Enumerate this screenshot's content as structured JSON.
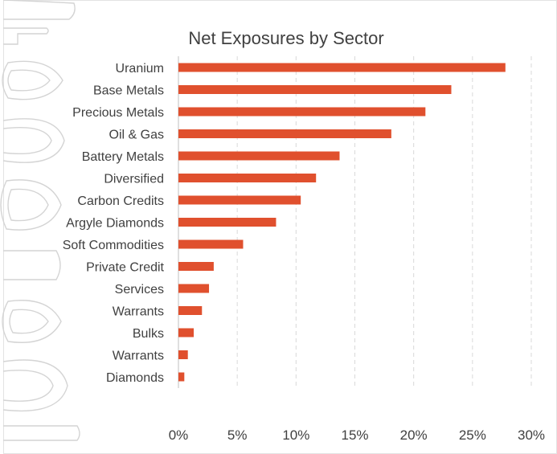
{
  "chart_data": {
    "type": "bar",
    "orientation": "horizontal",
    "title": "Net Exposures by Sector",
    "categories": [
      "Uranium",
      "Base Metals",
      "Precious Metals",
      "Oil & Gas",
      "Battery Metals",
      "Diversified",
      "Carbon Credits",
      "Argyle Diamonds",
      "Soft Commodities",
      "Private Credit",
      "Services",
      "Warrants",
      "Bulks",
      "Warrants",
      "Diamonds"
    ],
    "values": [
      0.278,
      0.232,
      0.21,
      0.181,
      0.137,
      0.117,
      0.104,
      0.083,
      0.055,
      0.03,
      0.026,
      0.02,
      0.013,
      0.008,
      0.005
    ],
    "xlim": [
      0,
      0.3
    ],
    "x_ticks": [
      0,
      0.05,
      0.1,
      0.15,
      0.2,
      0.25,
      0.3
    ],
    "x_tick_labels": [
      "0%",
      "5%",
      "10%",
      "15%",
      "20%",
      "25%",
      "30%"
    ],
    "xlabel": "",
    "ylabel": "",
    "grid": "vertical-dashed",
    "legend": "none",
    "bar_color": "#e0502e"
  }
}
